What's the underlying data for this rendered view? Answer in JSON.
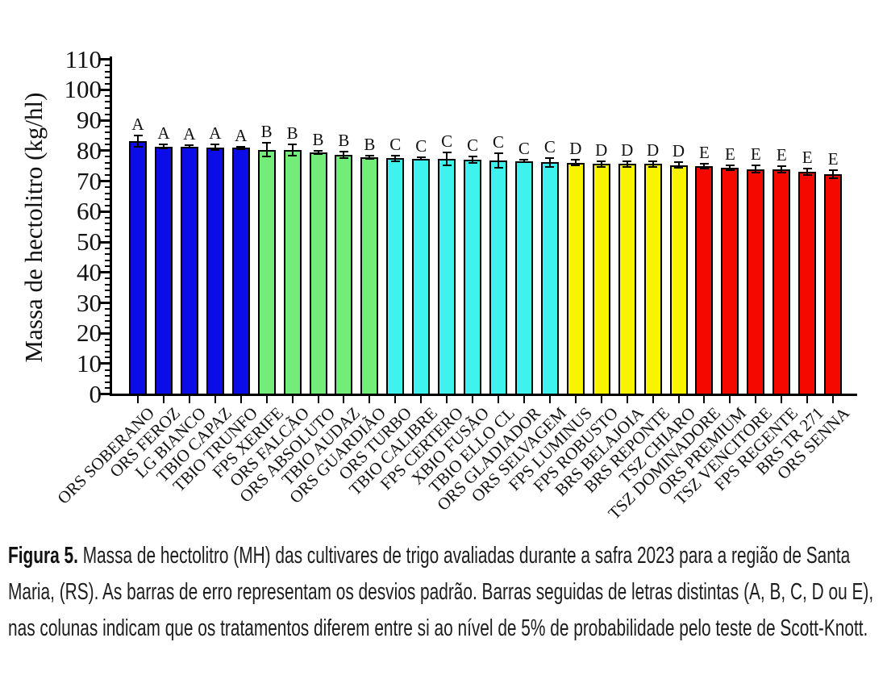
{
  "figure": {
    "caption_label": "Figura 5.",
    "caption_text": " Massa de hectolitro (MH) das cultivares de trigo avaliadas durante a safra 2023 para a região de Santa Maria, (RS). As barras de erro representam os desvios padrão. Barras seguidas de letras distintas (A, B, C, D ou E), nas colunas indicam que os tratamentos diferem entre si ao nível de 5% de probabilidade pelo teste de Scott-Knott."
  },
  "chart_data": {
    "type": "bar",
    "title": "",
    "xlabel": "",
    "ylabel": "Massa de hectolitro (kg/hl)",
    "unit": "kg/hl",
    "ylim": [
      0,
      110
    ],
    "ytick_step": 10,
    "minor_tick_step": 2,
    "grid": false,
    "legend": false,
    "error_bars": "desvio padrão",
    "groups": [
      {
        "letter": "A",
        "color": "#0c0ce8"
      },
      {
        "letter": "B",
        "color": "#74ec7a"
      },
      {
        "letter": "C",
        "color": "#3ef2ee"
      },
      {
        "letter": "D",
        "color": "#f8f400"
      },
      {
        "letter": "E",
        "color": "#f40800"
      }
    ],
    "bars": [
      {
        "label": "ORS SOBERANO",
        "value": 83.2,
        "sd": 1.8,
        "group": "A"
      },
      {
        "label": "ORS FEROZ",
        "value": 81.4,
        "sd": 0.6,
        "group": "A"
      },
      {
        "label": "LG BIANCO",
        "value": 81.3,
        "sd": 0.4,
        "group": "A"
      },
      {
        "label": "TBIO CAPAZ",
        "value": 81.1,
        "sd": 1.0,
        "group": "A"
      },
      {
        "label": "TBIO TRUNFO",
        "value": 81.0,
        "sd": 0.4,
        "group": "A"
      },
      {
        "label": "FPS XERIFE",
        "value": 80.3,
        "sd": 2.2,
        "group": "B"
      },
      {
        "label": "ORS FALCÃO",
        "value": 80.2,
        "sd": 1.8,
        "group": "B"
      },
      {
        "label": "ORS ABSOLUTO",
        "value": 79.4,
        "sd": 0.5,
        "group": "B"
      },
      {
        "label": "TBIO AUDAZ",
        "value": 78.6,
        "sd": 1.0,
        "group": "B"
      },
      {
        "label": "ORS GUARDIÃO",
        "value": 77.9,
        "sd": 0.5,
        "group": "B"
      },
      {
        "label": "ORS TURBO",
        "value": 77.5,
        "sd": 1.0,
        "group": "C"
      },
      {
        "label": "TBIO CALIBRE",
        "value": 77.4,
        "sd": 0.4,
        "group": "C"
      },
      {
        "label": "FPS CERTERO",
        "value": 77.3,
        "sd": 2.2,
        "group": "C"
      },
      {
        "label": "XBIO FUSÃO",
        "value": 77.1,
        "sd": 1.1,
        "group": "C"
      },
      {
        "label": "TBIO ELLO CL",
        "value": 76.8,
        "sd": 2.3,
        "group": "C"
      },
      {
        "label": "ORS GLADIADOR",
        "value": 76.6,
        "sd": 0.4,
        "group": "C"
      },
      {
        "label": "ORS SELVAGEM",
        "value": 76.2,
        "sd": 1.5,
        "group": "C"
      },
      {
        "label": "FPS LUMINUS",
        "value": 76.1,
        "sd": 1.0,
        "group": "D"
      },
      {
        "label": "FPS ROBUSTO",
        "value": 75.6,
        "sd": 1.0,
        "group": "D"
      },
      {
        "label": "BRS BELAJOIA",
        "value": 75.6,
        "sd": 1.0,
        "group": "D"
      },
      {
        "label": "BRS REPONTE",
        "value": 75.6,
        "sd": 1.0,
        "group": "D"
      },
      {
        "label": "TSZ CHIARO",
        "value": 75.3,
        "sd": 1.0,
        "group": "D"
      },
      {
        "label": "TSZ DOMINADORE",
        "value": 74.9,
        "sd": 0.7,
        "group": "E"
      },
      {
        "label": "ORS PREMIUM",
        "value": 74.4,
        "sd": 0.7,
        "group": "E"
      },
      {
        "label": "TSZ VENCITORE",
        "value": 73.9,
        "sd": 1.2,
        "group": "E"
      },
      {
        "label": "FPS REGENTE",
        "value": 73.8,
        "sd": 1.0,
        "group": "E"
      },
      {
        "label": "BRS TR 271",
        "value": 73.0,
        "sd": 1.0,
        "group": "E"
      },
      {
        "label": "ORS SENNA",
        "value": 72.3,
        "sd": 1.3,
        "group": "E"
      }
    ]
  }
}
